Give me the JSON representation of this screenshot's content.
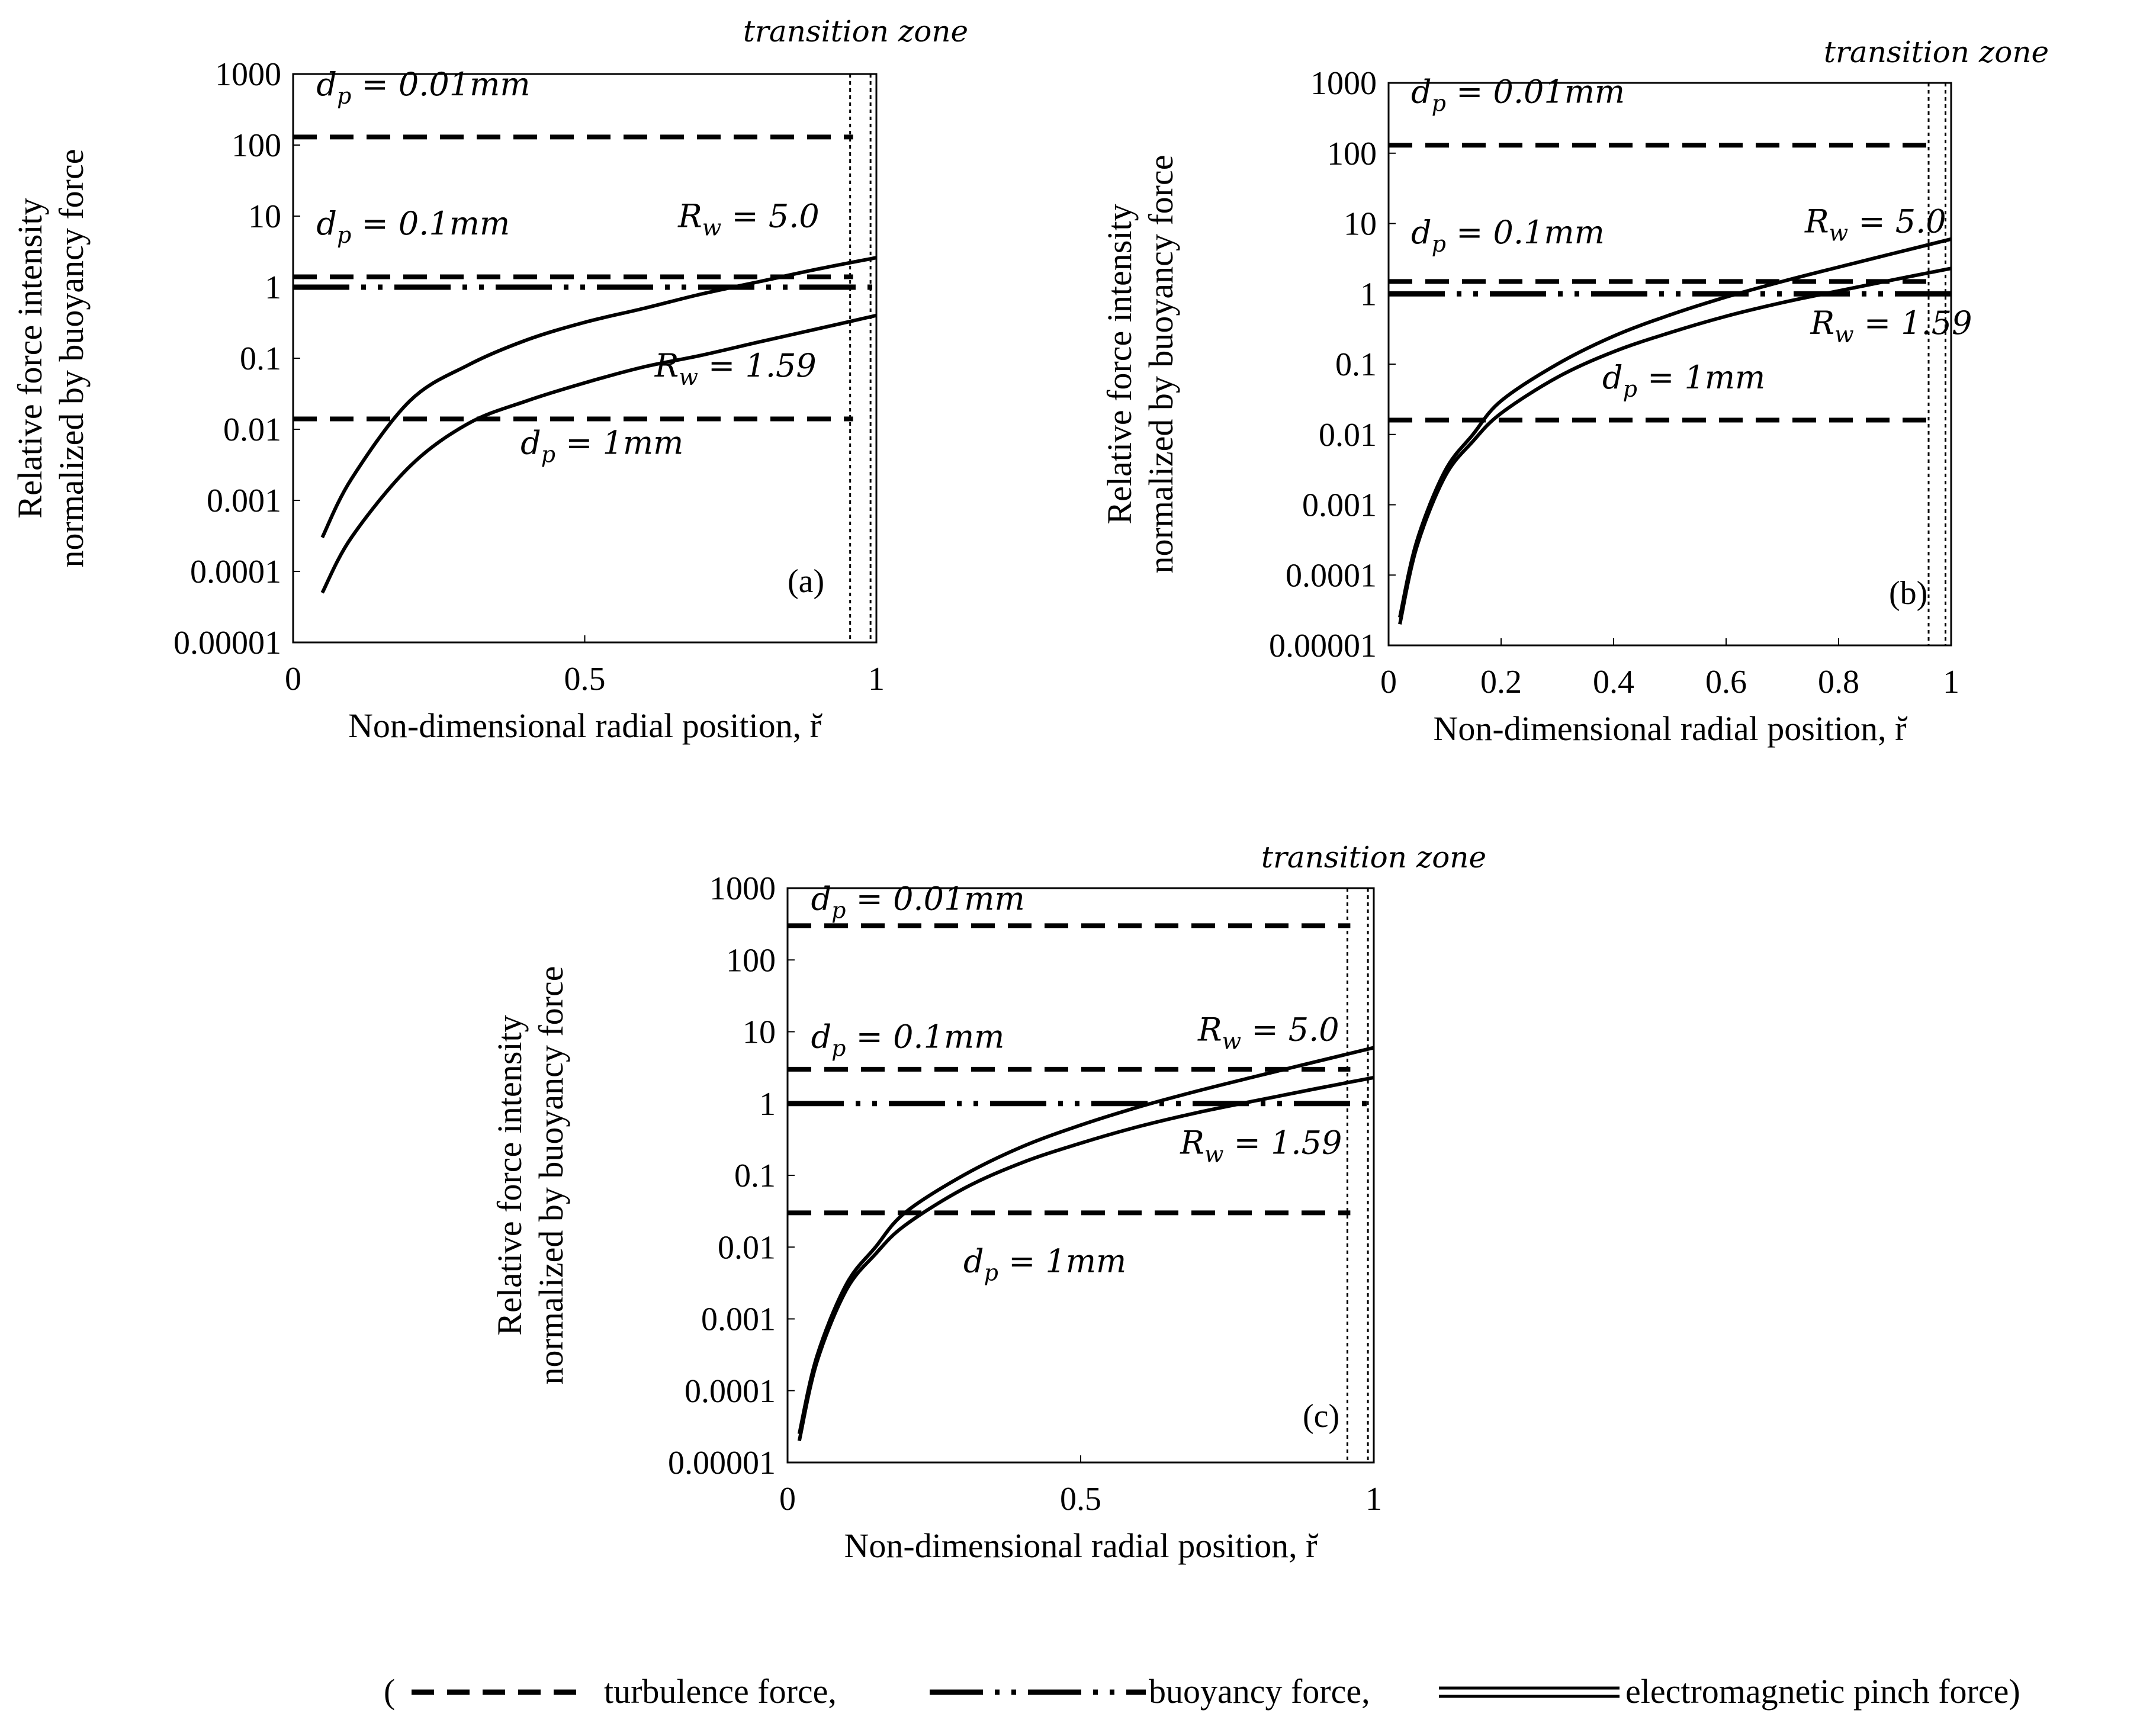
{
  "chart_data": [
    {
      "type": "line",
      "panel_label": "(a)",
      "xlabel": "Non-dimensional radial position, r̆",
      "ylabel_line1": "Relative force intensity",
      "ylabel_line2": "normalized by buoyancy force",
      "xlim": [
        0,
        1
      ],
      "ylim": [
        1e-05,
        1000
      ],
      "yscale": "log",
      "x_ticks": [
        0,
        0.5,
        1
      ],
      "x_tick_labels": [
        "0",
        "0.5",
        "1"
      ],
      "y_ticks": [
        1e-05,
        0.0001,
        0.001,
        0.01,
        0.1,
        1,
        10,
        100,
        1000
      ],
      "y_tick_labels": [
        "0.00001",
        "0.0001",
        "0.001",
        "0.01",
        "0.1",
        "1",
        "10",
        "100",
        "1000"
      ],
      "transition_zone_label": "transition zone",
      "transition_zone_x": [
        0.955,
        0.99
      ],
      "series": [
        {
          "name": "turbulence force d_p = 0.01mm",
          "style": "dashed",
          "x": [
            0,
            0.96
          ],
          "values": [
            130,
            130
          ],
          "label_main": "d",
          "label_sub": "p",
          "label_rest": " = 0.01mm"
        },
        {
          "name": "turbulence force d_p = 0.1mm",
          "style": "dashed",
          "x": [
            0,
            0.96
          ],
          "values": [
            1.4,
            1.4
          ],
          "label_main": "d",
          "label_sub": "p",
          "label_rest": " = 0.1mm"
        },
        {
          "name": "turbulence force d_p = 1mm",
          "style": "dashed",
          "x": [
            0,
            0.96
          ],
          "values": [
            0.014,
            0.014
          ],
          "label_main": "d",
          "label_sub": "p",
          "label_rest": " = 1mm"
        },
        {
          "name": "buoyancy force",
          "style": "dashdot",
          "x": [
            0,
            1
          ],
          "values": [
            1,
            1
          ]
        },
        {
          "name": "electromagnetic pinch force R_w = 5.0",
          "style": "solid",
          "x": [
            0.05,
            0.1,
            0.2,
            0.3,
            0.4,
            0.5,
            0.6,
            0.7,
            0.8,
            0.9,
            1.0
          ],
          "values": [
            0.0003,
            0.002,
            0.025,
            0.08,
            0.18,
            0.32,
            0.5,
            0.8,
            1.2,
            1.8,
            2.6
          ],
          "label_main": "R",
          "label_sub": "w",
          "label_rest": " = 5.0"
        },
        {
          "name": "electromagnetic pinch force R_w = 1.59",
          "style": "solid",
          "x": [
            0.05,
            0.1,
            0.2,
            0.3,
            0.4,
            0.5,
            0.6,
            0.7,
            0.8,
            0.9,
            1.0
          ],
          "values": [
            5e-05,
            0.0003,
            0.003,
            0.012,
            0.025,
            0.045,
            0.075,
            0.11,
            0.17,
            0.26,
            0.4
          ],
          "label_main": "R",
          "label_sub": "w",
          "label_rest": " = 1.59"
        }
      ]
    },
    {
      "type": "line",
      "panel_label": "(b)",
      "xlabel": "Non-dimensional radial position, r̆",
      "ylabel_line1": "Relative force intensity",
      "ylabel_line2": "normalized by buoyancy force",
      "xlim": [
        0,
        1
      ],
      "ylim": [
        1e-05,
        1000
      ],
      "yscale": "log",
      "x_ticks": [
        0,
        0.2,
        0.4,
        0.6,
        0.8,
        1
      ],
      "x_tick_labels": [
        "0",
        "0.2",
        "0.4",
        "0.6",
        "0.8",
        "1"
      ],
      "y_ticks": [
        1e-05,
        0.0001,
        0.001,
        0.01,
        0.1,
        1,
        10,
        100,
        1000
      ],
      "y_tick_labels": [
        "0.00001",
        "0.0001",
        "0.001",
        "0.01",
        "0.1",
        "1",
        "10",
        "100",
        "1000"
      ],
      "transition_zone_label": "transition zone",
      "transition_zone_x": [
        0.96,
        0.99
      ],
      "series": [
        {
          "name": "turbulence force d_p = 0.01mm",
          "style": "dashed",
          "x": [
            0,
            0.97
          ],
          "values": [
            130,
            130
          ],
          "label_main": "d",
          "label_sub": "p",
          "label_rest": " = 0.01mm"
        },
        {
          "name": "turbulence force d_p = 0.1mm",
          "style": "dashed",
          "x": [
            0,
            0.97
          ],
          "values": [
            1.5,
            1.5
          ],
          "label_main": "d",
          "label_sub": "p",
          "label_rest": " = 0.1mm"
        },
        {
          "name": "turbulence force d_p = 1mm",
          "style": "dashed",
          "x": [
            0,
            0.97
          ],
          "values": [
            0.016,
            0.016
          ],
          "label_main": "d",
          "label_sub": "p",
          "label_rest": " = 1mm"
        },
        {
          "name": "buoyancy force",
          "style": "dashdot",
          "x": [
            0,
            1
          ],
          "values": [
            1,
            1
          ]
        },
        {
          "name": "electromagnetic pinch force R_w = 5.0",
          "style": "solid",
          "x": [
            0.02,
            0.05,
            0.1,
            0.15,
            0.2,
            0.3,
            0.4,
            0.5,
            0.6,
            0.7,
            0.8,
            0.9,
            1.0
          ],
          "values": [
            2.5e-05,
            0.0003,
            0.003,
            0.01,
            0.03,
            0.1,
            0.25,
            0.5,
            0.9,
            1.5,
            2.4,
            3.8,
            6.0
          ],
          "label_main": "R",
          "label_sub": "w",
          "label_rest": " = 5.0"
        },
        {
          "name": "electromagnetic pinch force R_w = 1.59",
          "style": "solid",
          "x": [
            0.02,
            0.05,
            0.1,
            0.15,
            0.2,
            0.3,
            0.4,
            0.5,
            0.6,
            0.7,
            0.8,
            0.9,
            1.0
          ],
          "values": [
            2e-05,
            0.00025,
            0.0025,
            0.008,
            0.02,
            0.065,
            0.15,
            0.28,
            0.48,
            0.75,
            1.1,
            1.6,
            2.3
          ],
          "label_main": "R",
          "label_sub": "w",
          "label_rest": " = 1.59"
        }
      ]
    },
    {
      "type": "line",
      "panel_label": "(c)",
      "xlabel": "Non-dimensional radial position, r̆",
      "ylabel_line1": "Relative force intensity",
      "ylabel_line2": "normalized by buoyancy force",
      "xlim": [
        0,
        1
      ],
      "ylim": [
        1e-05,
        1000
      ],
      "yscale": "log",
      "x_ticks": [
        0,
        0.5,
        1
      ],
      "x_tick_labels": [
        "0",
        "0.5",
        "1"
      ],
      "y_ticks": [
        1e-05,
        0.0001,
        0.001,
        0.01,
        0.1,
        1,
        10,
        100,
        1000
      ],
      "y_tick_labels": [
        "0.00001",
        "0.0001",
        "0.001",
        "0.01",
        "0.1",
        "1",
        "10",
        "100",
        "1000"
      ],
      "transition_zone_label": "transition zone",
      "transition_zone_x": [
        0.955,
        0.99
      ],
      "series": [
        {
          "name": "turbulence force d_p = 0.01mm",
          "style": "dashed",
          "x": [
            0,
            0.96
          ],
          "values": [
            300,
            300
          ],
          "label_main": "d",
          "label_sub": "p",
          "label_rest": " = 0.01mm"
        },
        {
          "name": "turbulence force d_p = 0.1mm",
          "style": "dashed",
          "x": [
            0,
            0.96
          ],
          "values": [
            3,
            3
          ],
          "label_main": "d",
          "label_sub": "p",
          "label_rest": " = 0.1mm"
        },
        {
          "name": "turbulence force d_p = 1mm",
          "style": "dashed",
          "x": [
            0,
            0.96
          ],
          "values": [
            0.03,
            0.03
          ],
          "label_main": "d",
          "label_sub": "p",
          "label_rest": " = 1mm"
        },
        {
          "name": "buoyancy force",
          "style": "dashdot",
          "x": [
            0,
            1
          ],
          "values": [
            1,
            1
          ]
        },
        {
          "name": "electromagnetic pinch force R_w = 5.0",
          "style": "solid",
          "x": [
            0.02,
            0.05,
            0.1,
            0.15,
            0.2,
            0.3,
            0.4,
            0.5,
            0.6,
            0.7,
            0.8,
            0.9,
            1.0
          ],
          "values": [
            2.5e-05,
            0.0003,
            0.003,
            0.01,
            0.03,
            0.1,
            0.25,
            0.5,
            0.9,
            1.5,
            2.4,
            3.8,
            6.0
          ],
          "label_main": "R",
          "label_sub": "w",
          "label_rest": " = 5.0"
        },
        {
          "name": "electromagnetic pinch force R_w = 1.59",
          "style": "solid",
          "x": [
            0.02,
            0.05,
            0.1,
            0.15,
            0.2,
            0.3,
            0.4,
            0.5,
            0.6,
            0.7,
            0.8,
            0.9,
            1.0
          ],
          "values": [
            2e-05,
            0.00025,
            0.0025,
            0.008,
            0.02,
            0.065,
            0.15,
            0.28,
            0.48,
            0.75,
            1.1,
            1.6,
            2.3
          ],
          "label_main": "R",
          "label_sub": "w",
          "label_rest": " = 1.59"
        }
      ]
    }
  ],
  "legend": {
    "open_paren": "(",
    "turbulence": "turbulence force,",
    "buoyancy": "buoyancy force,",
    "pinch": "electromagnetic pinch force)"
  }
}
